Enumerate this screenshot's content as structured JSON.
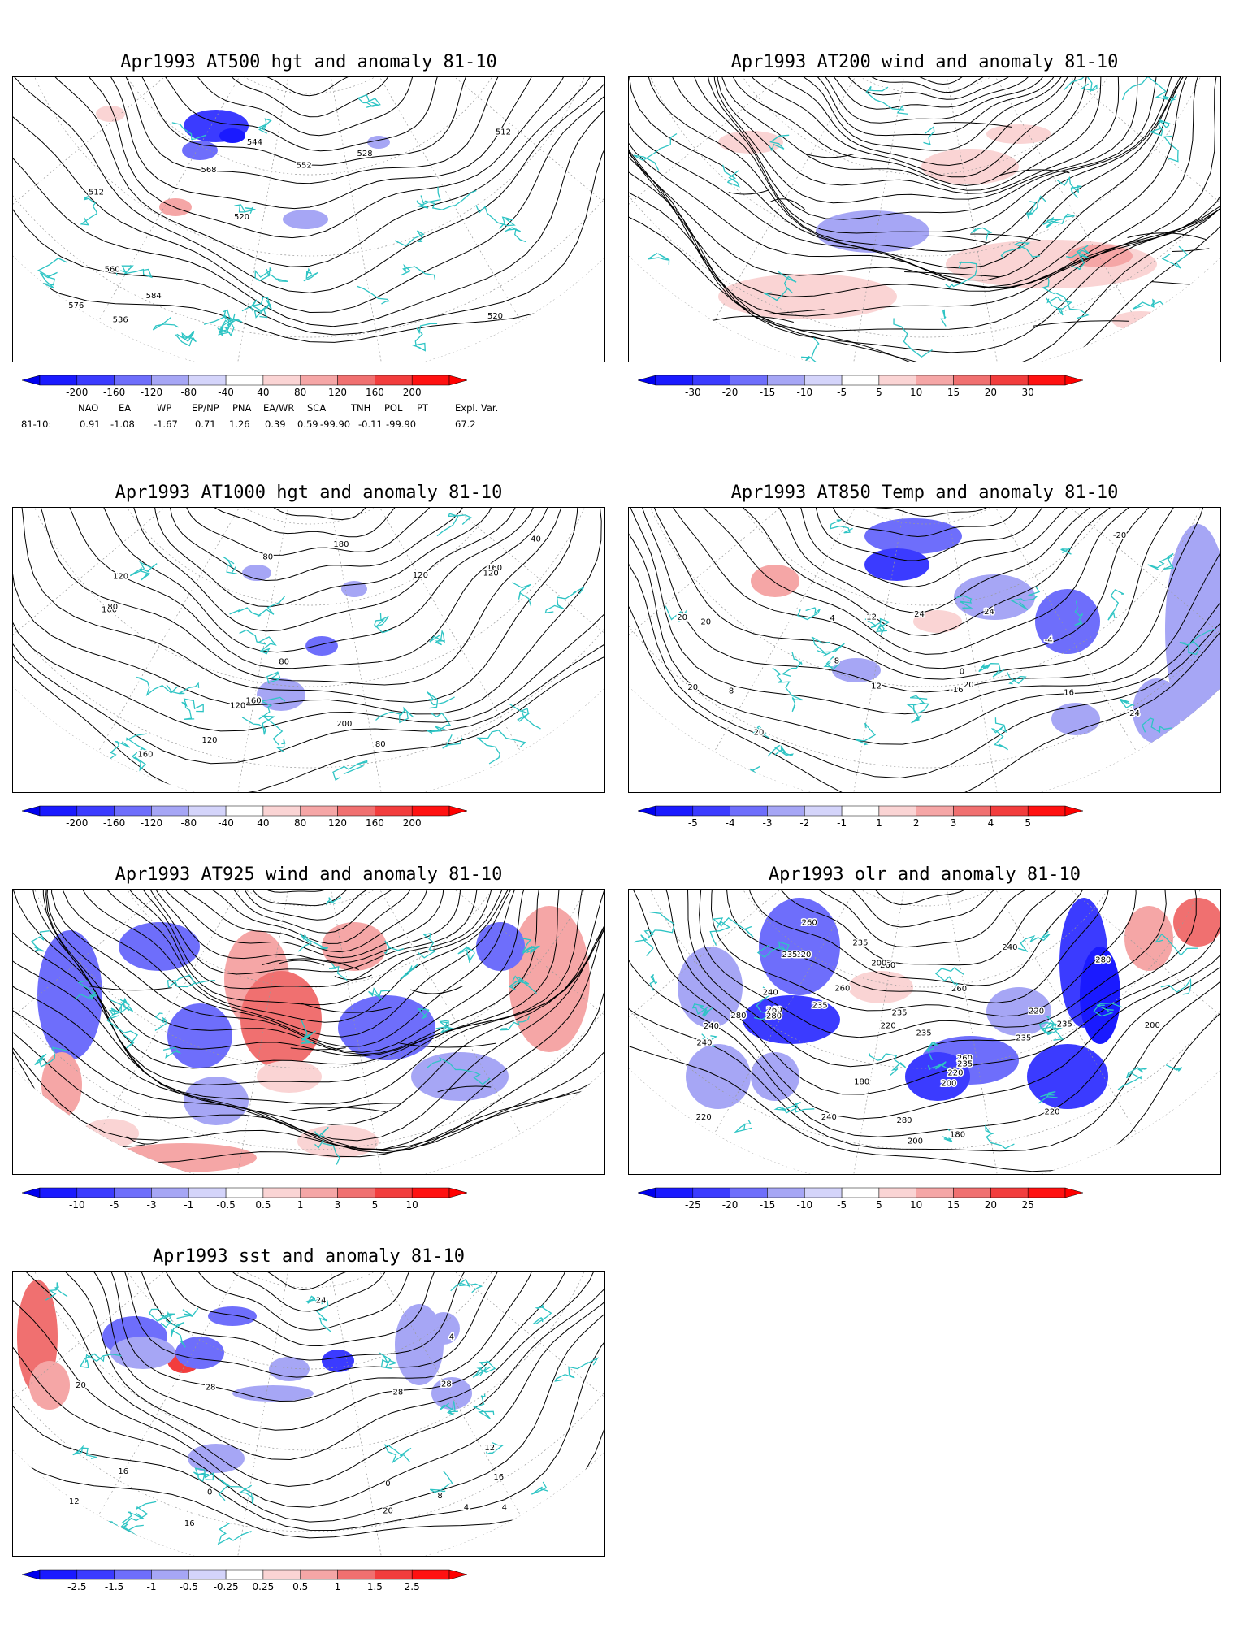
{
  "panels": [
    {
      "title": "Apr1993 AT500 hgt and anomaly 81-10",
      "kind": "contour",
      "labels": [
        "520",
        "512",
        "512",
        "520",
        "528",
        "536",
        "544",
        "552",
        "560",
        "568",
        "576",
        "584"
      ],
      "colorbar": [
        "-200",
        "-160",
        "-120",
        "-80",
        "-40",
        "40",
        "80",
        "120",
        "160",
        "200"
      ]
    },
    {
      "title": "Apr1993 AT200 wind and anomaly 81-10",
      "kind": "stream",
      "labels": [],
      "colorbar": [
        "-30",
        "-20",
        "-15",
        "-10",
        "-5",
        "5",
        "10",
        "15",
        "20",
        "30"
      ]
    },
    {
      "title": "Apr1993 AT1000 hgt and anomaly 81-10",
      "kind": "contour",
      "labels": [
        "120",
        "160",
        "180",
        "160",
        "80",
        "120",
        "40",
        "160",
        "200",
        "160",
        "120",
        "120",
        "120",
        "80",
        "80",
        "80"
      ],
      "colorbar": [
        "-200",
        "-160",
        "-120",
        "-80",
        "-40",
        "40",
        "80",
        "120",
        "160",
        "200"
      ]
    },
    {
      "title": "Apr1993 AT850 Temp and anomaly 81-10",
      "kind": "contour",
      "labels": [
        "20",
        "-20",
        "-20",
        "-16",
        "-8",
        "-12",
        "-4",
        "0",
        "4",
        "24",
        "20",
        "20",
        "8",
        "12",
        "16",
        "24",
        "24",
        "20"
      ],
      "colorbar": [
        "-5",
        "-4",
        "-3",
        "-2",
        "-1",
        "1",
        "2",
        "3",
        "4",
        "5"
      ]
    },
    {
      "title": "Apr1993 AT925 wind and anomaly 81-10",
      "kind": "stream",
      "labels": [],
      "colorbar": [
        "-10",
        "-5",
        "-3",
        "-1",
        "-0.5",
        "0.5",
        "1",
        "3",
        "5",
        "10"
      ]
    },
    {
      "title": "Apr1993 olr and anomaly 81-10",
      "kind": "contour",
      "labels": [
        "240",
        "180",
        "180",
        "235",
        "280",
        "260",
        "260",
        "200",
        "235",
        "235",
        "220",
        "200",
        "220",
        "240",
        "260",
        "235",
        "280",
        "220",
        "260",
        "240",
        "235",
        "240",
        "200",
        "220",
        "260",
        "280",
        "235",
        "200",
        "220",
        "260",
        "235",
        "220",
        "240",
        "235",
        "280"
      ],
      "colorbar": [
        "-25",
        "-20",
        "-15",
        "-10",
        "-5",
        "5",
        "10",
        "15",
        "20",
        "25"
      ]
    },
    {
      "title": "Apr1993 sst and anomaly 81-10",
      "kind": "contour",
      "labels": [
        "28",
        "20",
        "4",
        "8",
        "12",
        "0",
        "16",
        "20",
        "24",
        "28",
        "0",
        "4",
        "4",
        "16",
        "16",
        "28",
        "12"
      ],
      "colorbar": [
        "-2.5",
        "-1.5",
        "-1",
        "-0.5",
        "-0.25",
        "0.25",
        "0.5",
        "1",
        "1.5",
        "2.5"
      ]
    }
  ],
  "indices": {
    "headers": [
      "NAO",
      "EA",
      "WP",
      "EP/NP",
      "PNA",
      "EA/WR",
      "SCA",
      "TNH",
      "POL",
      "PT",
      "Expl. Var."
    ],
    "row_label": "81-10:",
    "values": [
      "0.91",
      "-1.08",
      "-1.67",
      "0.71",
      "1.26",
      "0.39",
      "0.59",
      "-99.90",
      "-0.11",
      "-99.90",
      "67.2"
    ]
  },
  "colors": {
    "coast": "#2ec4c4",
    "neg": [
      "#1a1aff",
      "#3b3bff",
      "#6e6efb",
      "#a6a6f5",
      "#d4d4fa"
    ],
    "pos": [
      "#fad4d4",
      "#f5a6a6",
      "#f07070",
      "#f23d3d",
      "#ff1111"
    ]
  }
}
